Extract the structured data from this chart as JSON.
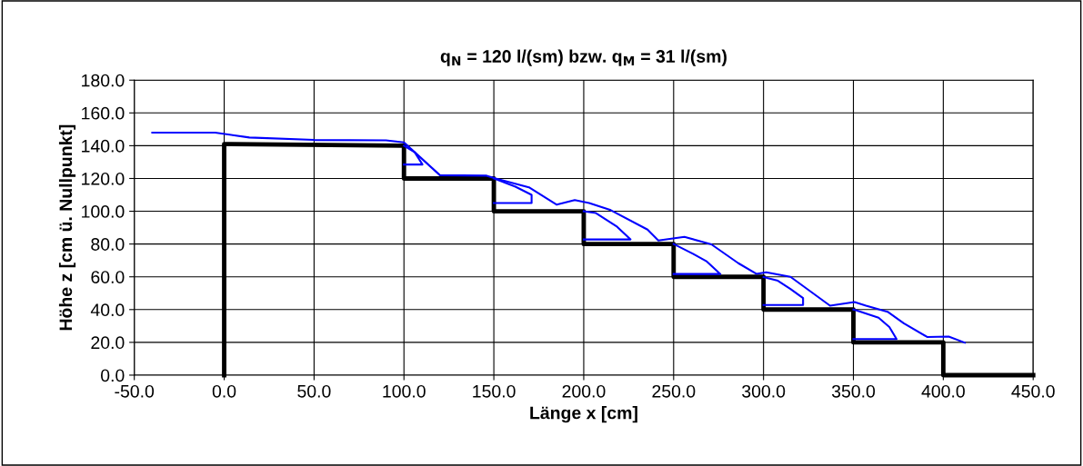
{
  "chart_data": {
    "type": "line",
    "title": "q$_{N}$ = 120 l/(sm) bzw. q$_{M}$ = 31 l/(sm)",
    "xlabel": "Länge x [cm]",
    "ylabel": "Höhe z [cm ü. Nullpunkt]",
    "xlim": [
      -50,
      450
    ],
    "ylim": [
      0,
      180
    ],
    "xticks": [
      {
        "value": -50,
        "label": "-50.0"
      },
      {
        "value": 0,
        "label": "0.0"
      },
      {
        "value": 50,
        "label": "50.0"
      },
      {
        "value": 100,
        "label": "100.0"
      },
      {
        "value": 150,
        "label": "150.0"
      },
      {
        "value": 200,
        "label": "200.0"
      },
      {
        "value": 250,
        "label": "250.0"
      },
      {
        "value": 300,
        "label": "300.0"
      },
      {
        "value": 350,
        "label": "350.0"
      },
      {
        "value": 400,
        "label": "400.0"
      },
      {
        "value": 450,
        "label": "450.0"
      }
    ],
    "yticks": [
      {
        "value": 0,
        "label": "0.0"
      },
      {
        "value": 20,
        "label": "20.0"
      },
      {
        "value": 40,
        "label": "40.0"
      },
      {
        "value": 60,
        "label": "60.0"
      },
      {
        "value": 80,
        "label": "80.0"
      },
      {
        "value": 100,
        "label": "100.0"
      },
      {
        "value": 120,
        "label": "120.0"
      },
      {
        "value": 140,
        "label": "140.0"
      },
      {
        "value": 160,
        "label": "160.0"
      },
      {
        "value": 180,
        "label": "180.0"
      }
    ],
    "grid": true,
    "marker": "none",
    "line_style": "solid",
    "series": [
      {
        "color": "#000000",
        "x": [
          0,
          0,
          100,
          100,
          150,
          150,
          200,
          200,
          250,
          250,
          300,
          300,
          350,
          350,
          400,
          400,
          450
        ],
        "values": [
          0,
          141,
          140,
          120,
          120,
          100,
          100,
          80,
          80,
          60,
          60,
          40,
          40,
          20,
          20,
          0,
          0
        ]
      },
      {
        "color": "#0000ff",
        "x": [
          -40,
          -5,
          14,
          50,
          90,
          100,
          111,
          120,
          146,
          151,
          169.5,
          185,
          195,
          203,
          215,
          235.5,
          241.5,
          256,
          271,
          286,
          296,
          301.5,
          315,
          337,
          350.6,
          357,
          369,
          378,
          391,
          403,
          412
        ],
        "values": [
          148,
          148,
          145,
          143.5,
          143.3,
          142,
          131,
          122,
          121.7,
          120,
          114.6,
          104,
          106.8,
          105,
          100.7,
          88.8,
          82.2,
          84.4,
          79.8,
          68.3,
          61.8,
          62.8,
          60,
          42.4,
          44.6,
          42.4,
          38.7,
          31.7,
          23.3,
          23.5,
          19.8
        ]
      },
      {
        "color": "#0000ff",
        "x": [
          100,
          106,
          110.3,
          100
        ],
        "values": [
          140,
          136,
          128.5,
          128.5
        ]
      },
      {
        "color": "#0000ff",
        "x": [
          150,
          162,
          171,
          171,
          150
        ],
        "values": [
          120,
          115,
          110,
          105,
          105
        ]
      },
      {
        "color": "#0000ff",
        "x": [
          200,
          206.8,
          218.6,
          226,
          200
        ],
        "values": [
          100,
          98.9,
          90.5,
          82.8,
          82.8
        ]
      },
      {
        "color": "#0000ff",
        "x": [
          250,
          261,
          268.5,
          276,
          250
        ],
        "values": [
          80,
          73.9,
          69.3,
          61.7,
          61.7
        ]
      },
      {
        "color": "#0000ff",
        "x": [
          300,
          308,
          315,
          322,
          322,
          300
        ],
        "values": [
          59.8,
          57.6,
          52.6,
          47,
          42.8,
          42.8
        ]
      },
      {
        "color": "#0000ff",
        "x": [
          350,
          351.4,
          364,
          370,
          374,
          350
        ],
        "values": [
          40,
          39.6,
          35,
          29.4,
          22,
          22
        ]
      }
    ]
  }
}
